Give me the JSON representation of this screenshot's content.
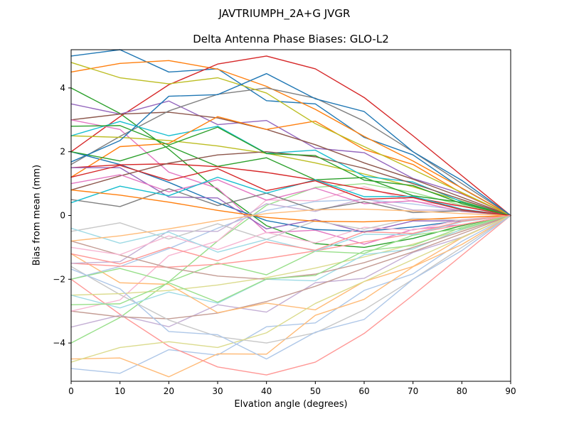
{
  "page": {
    "background": "#ffffff"
  },
  "chart_data": {
    "type": "line",
    "suptitle": "JAVTRIUMPH_2A+G JVGR",
    "title": "Delta Antenna Phase Biases: GLO-L2",
    "xlabel": "Elvation angle (degrees)",
    "ylabel": "Bias from mean (mm)",
    "xlim": [
      0,
      90
    ],
    "ylim": [
      -5.2,
      5.2
    ],
    "xticks": [
      0,
      10,
      20,
      30,
      40,
      50,
      60,
      70,
      80,
      90
    ],
    "yticks": [
      -4,
      -2,
      0,
      2,
      4
    ],
    "grid": false,
    "legend": "none",
    "line_width": 1.4,
    "color_cycle": [
      "#1f77b4",
      "#aec7e8",
      "#ff7f0e",
      "#ffbb78",
      "#2ca02c",
      "#98df8a",
      "#d62728",
      "#ff9896",
      "#9467bd",
      "#c5b0d5",
      "#8c564b",
      "#c49c94",
      "#e377c2",
      "#f7b6d2",
      "#7f7f7f",
      "#c7c7c7",
      "#bcbd22",
      "#dbdb8d",
      "#17becf",
      "#9edae5"
    ],
    "x": [
      0,
      10,
      20,
      30,
      40,
      50,
      60,
      70,
      80,
      90
    ],
    "series": [
      {
        "values": [
          5.0,
          5.2,
          4.5,
          4.6,
          3.6,
          3.5,
          2.45,
          1.9,
          0.85,
          0
        ]
      },
      {
        "values": [
          -4.8,
          -4.95,
          -4.21,
          -4.38,
          -3.49,
          -3.37,
          -2.35,
          -1.83,
          -0.81,
          0
        ]
      },
      {
        "values": [
          4.5,
          4.77,
          4.86,
          4.59,
          4.05,
          3.33,
          2.48,
          1.71,
          0.86,
          0
        ]
      },
      {
        "values": [
          -4.5,
          -4.47,
          -5.06,
          -4.34,
          -4.35,
          -3.13,
          -2.63,
          -1.61,
          -0.91,
          0
        ]
      },
      {
        "values": [
          4.0,
          3.2,
          2.08,
          0.8,
          -0.32,
          -0.88,
          -1.0,
          -0.72,
          -0.32,
          0
        ]
      },
      {
        "values": [
          -4.0,
          -3.2,
          -2.08,
          -0.8,
          0.32,
          0.88,
          1.0,
          0.72,
          0.32,
          0
        ]
      },
      {
        "values": [
          2.0,
          3.1,
          4.1,
          4.75,
          5.0,
          4.6,
          3.7,
          2.5,
          1.25,
          0
        ]
      },
      {
        "values": [
          -2.0,
          -3.1,
          -4.1,
          -4.75,
          -5.0,
          -4.6,
          -3.7,
          -2.5,
          -1.25,
          0
        ]
      },
      {
        "values": [
          3.5,
          3.18,
          3.59,
          2.85,
          2.98,
          2.11,
          1.97,
          1.16,
          0.68,
          0
        ]
      },
      {
        "values": [
          -3.5,
          -3.13,
          -3.49,
          -2.8,
          -3.03,
          -2.11,
          -1.97,
          -1.16,
          -0.68,
          0
        ]
      },
      {
        "values": [
          3.0,
          3.18,
          3.24,
          3.06,
          2.7,
          2.22,
          1.65,
          1.14,
          0.57,
          0
        ]
      },
      {
        "values": [
          -3.0,
          -3.18,
          -3.24,
          -3.06,
          -2.7,
          -2.22,
          -1.65,
          -1.14,
          -0.57,
          0
        ]
      },
      {
        "values": [
          3.0,
          2.7,
          1.36,
          0.85,
          -0.54,
          -0.46,
          -0.9,
          -0.44,
          -0.29,
          0
        ]
      },
      {
        "values": [
          -3.0,
          -2.65,
          -1.26,
          -0.8,
          0.49,
          0.46,
          0.9,
          0.44,
          0.29,
          0
        ]
      },
      {
        "values": [
          1.6,
          2.48,
          3.28,
          3.8,
          4.0,
          3.68,
          2.96,
          2.0,
          1.0,
          0
        ]
      },
      {
        "values": [
          -1.6,
          -2.48,
          -3.28,
          -3.8,
          -4.0,
          -3.68,
          -2.96,
          -2.0,
          -1.0,
          0
        ]
      },
      {
        "values": [
          2.5,
          2.45,
          2.35,
          2.18,
          1.95,
          1.65,
          1.3,
          0.9,
          0.45,
          0
        ]
      },
      {
        "values": [
          -2.5,
          -2.45,
          -2.35,
          -2.18,
          -1.95,
          -1.65,
          -1.3,
          -0.9,
          -0.45,
          0
        ]
      },
      {
        "values": [
          2.5,
          2.95,
          2.5,
          2.8,
          1.95,
          2.05,
          1.23,
          1.05,
          0.43,
          0
        ]
      },
      {
        "values": [
          -2.5,
          -2.9,
          -2.4,
          -2.75,
          -2.0,
          -2.05,
          -1.23,
          -1.05,
          -0.43,
          0
        ]
      },
      {
        "values": [
          2.0,
          1.6,
          1.04,
          0.4,
          -0.16,
          -0.44,
          -0.5,
          -0.36,
          -0.16,
          0
        ]
      },
      {
        "values": [
          -2.0,
          -1.6,
          -1.04,
          -0.4,
          0.16,
          0.44,
          0.5,
          0.36,
          0.16,
          0
        ]
      },
      {
        "values": [
          1.2,
          2.16,
          2.26,
          3.1,
          2.7,
          2.96,
          2.07,
          1.6,
          0.7,
          0
        ]
      },
      {
        "values": [
          -1.2,
          -2.11,
          -2.16,
          -3.05,
          -2.75,
          -2.96,
          -2.07,
          -1.6,
          -0.7,
          0
        ]
      },
      {
        "values": [
          2.0,
          1.71,
          2.18,
          1.54,
          1.81,
          1.12,
          1.19,
          0.62,
          0.41,
          0
        ]
      },
      {
        "values": [
          -2.0,
          -1.66,
          -2.08,
          -1.49,
          -1.86,
          -1.12,
          -1.19,
          -0.62,
          -0.41,
          0
        ]
      },
      {
        "values": [
          1.5,
          1.59,
          1.62,
          1.53,
          1.35,
          1.11,
          0.83,
          0.57,
          0.29,
          0
        ]
      },
      {
        "values": [
          -1.5,
          -1.59,
          -1.62,
          -1.53,
          -1.35,
          -1.11,
          -0.83,
          -0.57,
          -0.29,
          0
        ]
      },
      {
        "values": [
          1.5,
          1.5,
          0.58,
          0.55,
          -0.42,
          -0.13,
          -0.53,
          -0.17,
          -0.17,
          0
        ]
      },
      {
        "values": [
          -1.5,
          -1.45,
          -0.48,
          -0.5,
          0.37,
          0.13,
          0.53,
          0.17,
          0.17,
          0
        ]
      },
      {
        "values": [
          0.8,
          1.24,
          1.64,
          1.9,
          2.0,
          1.84,
          1.48,
          1.0,
          0.5,
          0
        ]
      },
      {
        "values": [
          -0.8,
          -1.24,
          -1.64,
          -1.9,
          -2.0,
          -1.84,
          -1.48,
          -1.0,
          -0.5,
          0
        ]
      },
      {
        "values": [
          1.0,
          1.28,
          0.74,
          1.12,
          0.48,
          0.86,
          0.37,
          0.46,
          0.13,
          0
        ]
      },
      {
        "values": [
          -1.0,
          -1.23,
          -0.64,
          -1.07,
          -0.53,
          -0.86,
          -0.37,
          -0.46,
          -0.13,
          0
        ]
      },
      {
        "values": [
          0.5,
          0.28,
          0.84,
          0.31,
          0.7,
          0.17,
          0.43,
          0.09,
          0.15,
          0
        ]
      },
      {
        "values": [
          -0.5,
          -0.23,
          -0.74,
          -0.26,
          -0.75,
          -0.17,
          -0.43,
          -0.09,
          -0.15,
          0
        ]
      },
      {
        "values": [
          4.8,
          4.32,
          4.13,
          4.32,
          3.84,
          2.88,
          2.16,
          1.44,
          0.72,
          0
        ]
      },
      {
        "values": [
          -4.6,
          -4.14,
          -3.96,
          -4.14,
          -3.68,
          -2.76,
          -2.07,
          -1.38,
          -0.69,
          0
        ]
      },
      {
        "values": [
          0.4,
          0.92,
          0.62,
          1.2,
          0.7,
          1.12,
          0.59,
          0.6,
          0.2,
          0
        ]
      },
      {
        "values": [
          -0.4,
          -0.87,
          -0.52,
          -1.15,
          -0.75,
          -1.12,
          -0.59,
          -0.6,
          -0.2,
          0
        ]
      },
      {
        "values": [
          1.68,
          2.35,
          3.74,
          3.79,
          4.45,
          3.66,
          3.26,
          2.0,
          1.1,
          0
        ]
      },
      {
        "values": [
          -1.68,
          -2.3,
          -3.64,
          -3.74,
          -4.5,
          -3.66,
          -3.26,
          -2.0,
          -1.1,
          0
        ]
      },
      {
        "values": [
          0.8,
          0.64,
          0.42,
          0.16,
          -0.06,
          -0.18,
          -0.2,
          -0.14,
          -0.06,
          0
        ]
      },
      {
        "values": [
          -0.8,
          -0.64,
          -0.42,
          -0.16,
          0.06,
          0.18,
          0.2,
          0.14,
          0.06,
          0
        ]
      },
      {
        "values": [
          2.8,
          2.82,
          2.21,
          2.77,
          1.94,
          1.88,
          1.11,
          0.94,
          0.37,
          0
        ]
      },
      {
        "values": [
          -2.8,
          -2.77,
          -2.11,
          -2.72,
          -1.99,
          -1.88,
          -1.11,
          -0.94,
          -0.37,
          0
        ]
      },
      {
        "values": [
          1.2,
          1.57,
          1.1,
          1.47,
          0.78,
          1.09,
          0.51,
          0.56,
          0.18,
          0
        ]
      },
      {
        "values": [
          -1.2,
          -1.52,
          -1.0,
          -1.42,
          -0.83,
          -1.09,
          -0.51,
          -0.56,
          -0.18,
          0
        ]
      }
    ]
  }
}
